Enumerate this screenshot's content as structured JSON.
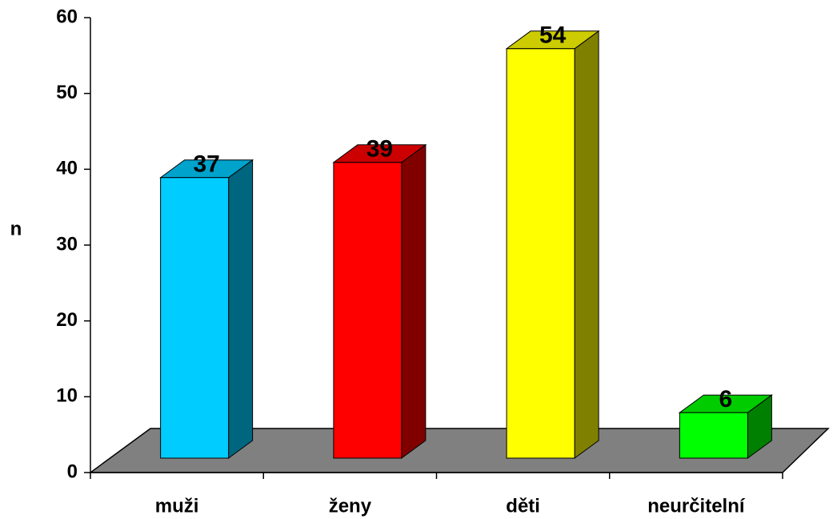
{
  "chart_data": {
    "type": "bar3d",
    "ylabel": "n",
    "categories": [
      "muži",
      "ženy",
      "děti",
      "neurčitelní"
    ],
    "values": [
      37,
      39,
      54,
      6
    ],
    "colors": [
      "#00ccff",
      "#ff0000",
      "#ffff00",
      "#00ff00"
    ],
    "ylim": [
      0,
      60
    ],
    "yticks": [
      0,
      10,
      20,
      30,
      40,
      50,
      60
    ],
    "grid": false
  }
}
